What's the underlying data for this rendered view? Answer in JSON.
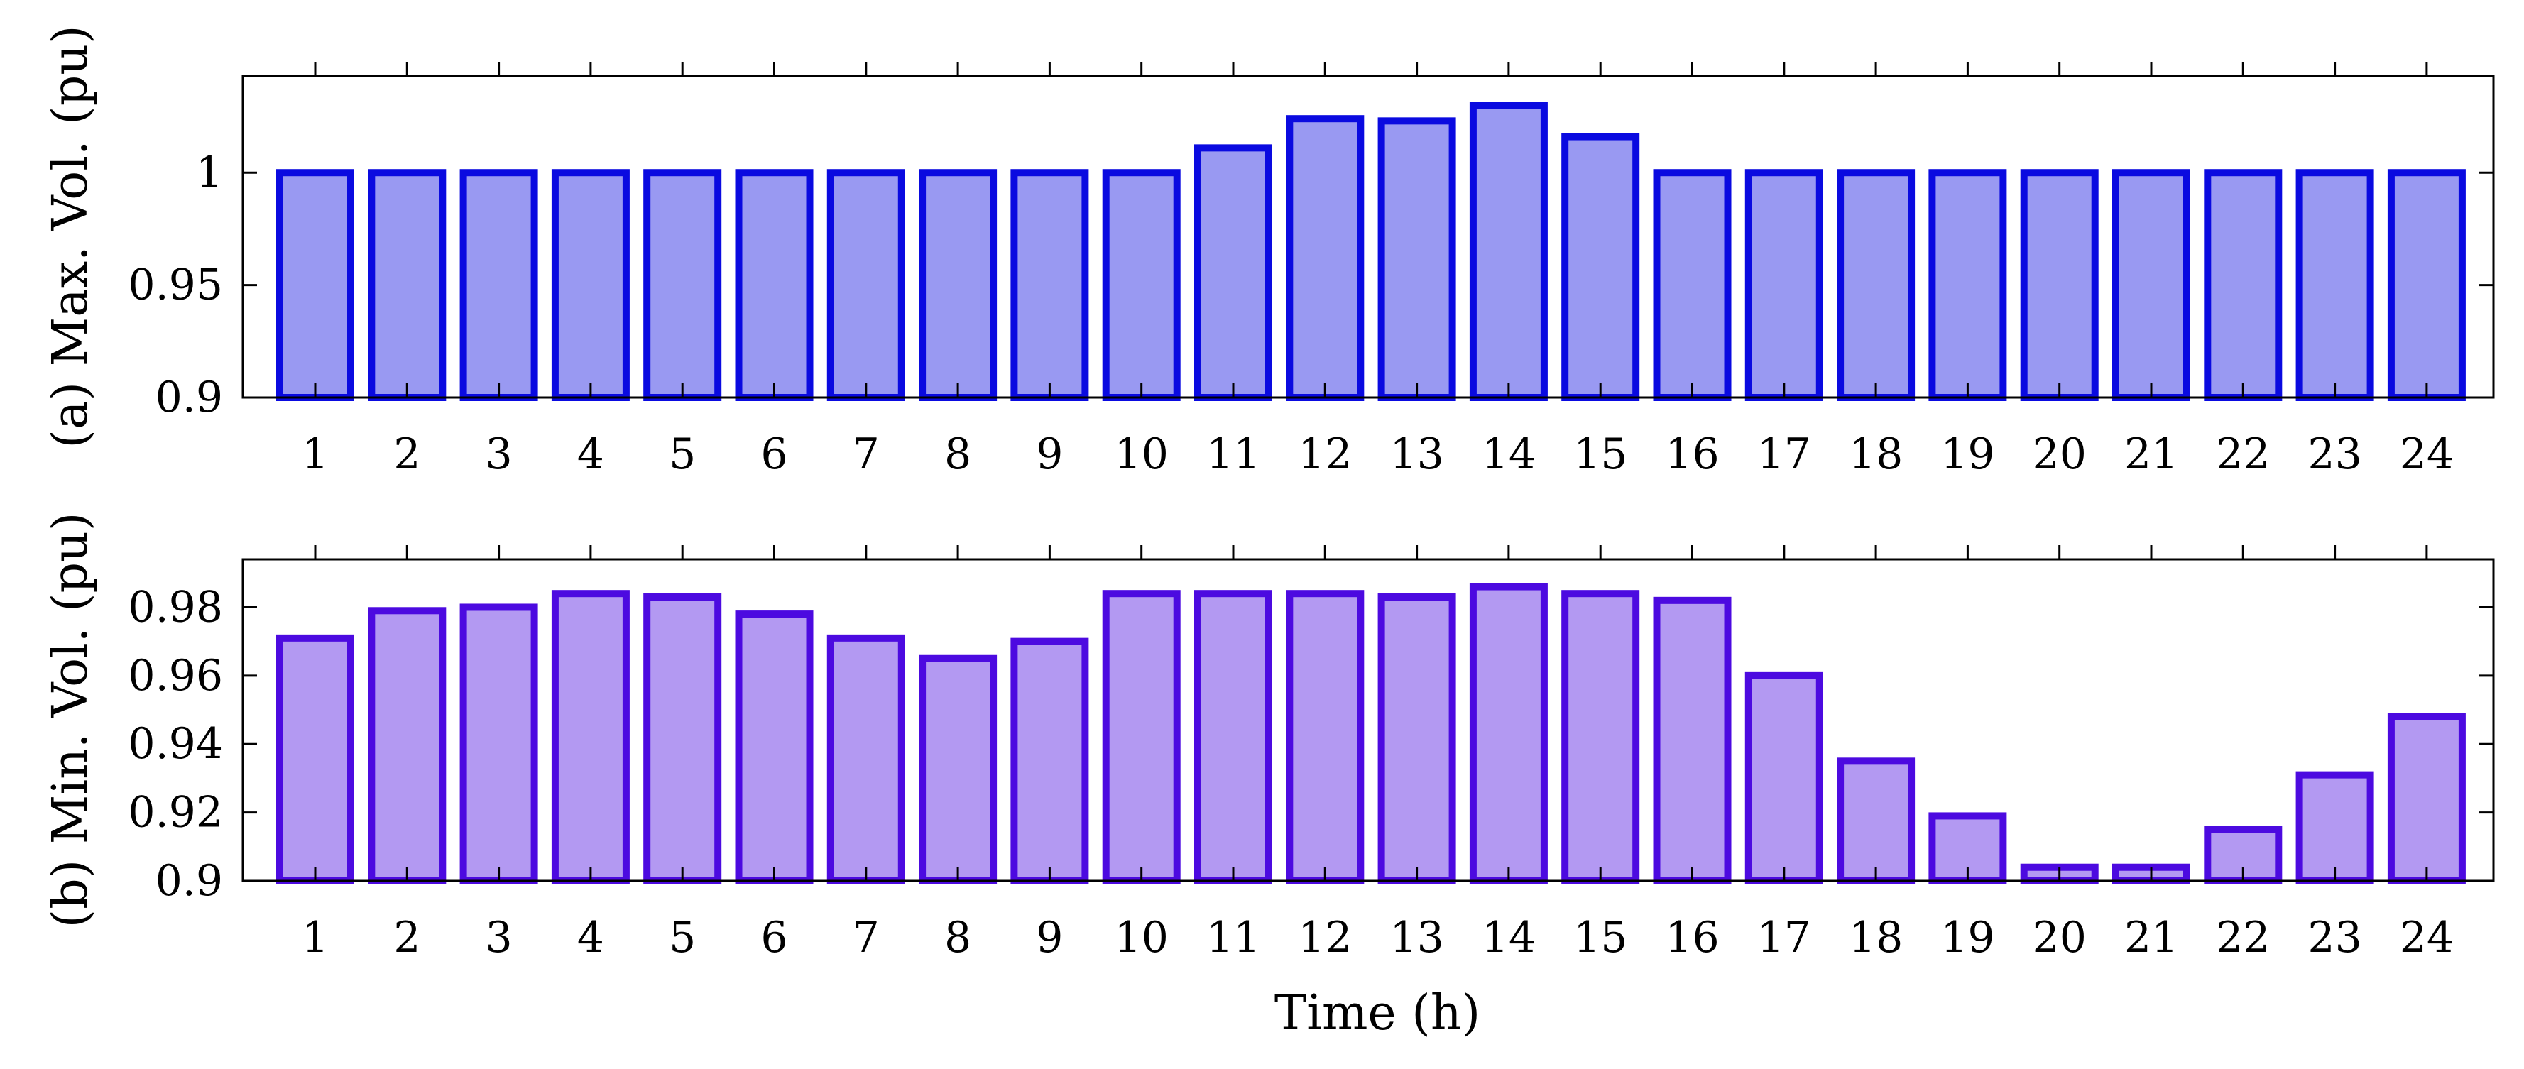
{
  "colors": {
    "panel_a_edge": "#0a0ae0",
    "panel_a_fill": "#9999f2",
    "panel_b_edge": "#4c0ae0",
    "panel_b_fill": "#b399f2"
  },
  "chart_data": [
    {
      "type": "bar",
      "categories": [
        "1",
        "2",
        "3",
        "4",
        "5",
        "6",
        "7",
        "8",
        "9",
        "10",
        "11",
        "12",
        "13",
        "14",
        "15",
        "16",
        "17",
        "18",
        "19",
        "20",
        "21",
        "22",
        "23",
        "24"
      ],
      "values": [
        1.0,
        1.0,
        1.0,
        1.0,
        1.0,
        1.0,
        1.0,
        1.0,
        1.0,
        1.0,
        1.011,
        1.024,
        1.023,
        1.03,
        1.016,
        1.0,
        1.0,
        1.0,
        1.0,
        1.0,
        1.0,
        1.0,
        1.0,
        1.0
      ],
      "xlabel": "",
      "ylabel": "(a) Max. Vol. (pu)",
      "ylim": [
        0.9,
        1.043
      ],
      "yticks": [
        0.9,
        0.95,
        1.0
      ],
      "ytick_labels": [
        "0.9",
        "0.95",
        "1"
      ],
      "grid": false
    },
    {
      "type": "bar",
      "categories": [
        "1",
        "2",
        "3",
        "4",
        "5",
        "6",
        "7",
        "8",
        "9",
        "10",
        "11",
        "12",
        "13",
        "14",
        "15",
        "16",
        "17",
        "18",
        "19",
        "20",
        "21",
        "22",
        "23",
        "24"
      ],
      "values": [
        0.971,
        0.979,
        0.98,
        0.984,
        0.983,
        0.978,
        0.971,
        0.965,
        0.97,
        0.984,
        0.984,
        0.984,
        0.983,
        0.986,
        0.984,
        0.982,
        0.96,
        0.935,
        0.919,
        0.904,
        0.904,
        0.915,
        0.931,
        0.948
      ],
      "xlabel": "Time (h)",
      "ylabel": "(b) Min. Vol. (pu)",
      "ylim": [
        0.9,
        0.994
      ],
      "yticks": [
        0.9,
        0.92,
        0.94,
        0.96,
        0.98
      ],
      "ytick_labels": [
        "0.9",
        "0.92",
        "0.94",
        "0.96",
        "0.98"
      ],
      "grid": false
    }
  ]
}
